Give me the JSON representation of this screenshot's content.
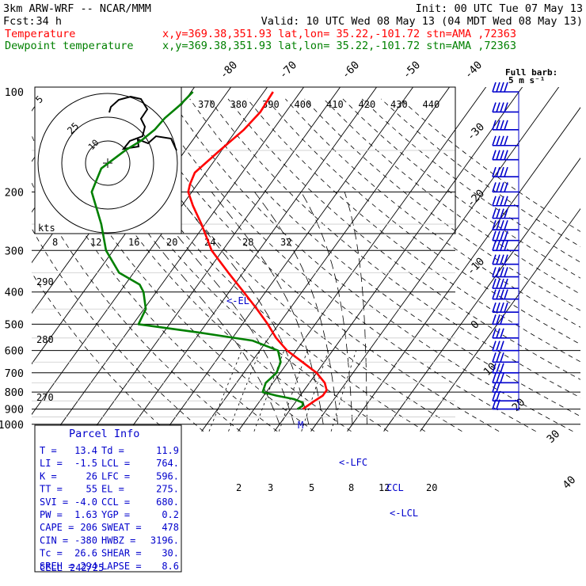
{
  "header": {
    "model": "3km ARW-WRF -- NCAR/MMM",
    "init": "Init: 00 UTC Tue 07 May 13",
    "fcst_label": "Fcst:",
    "fcst_value": "34 h",
    "valid": "Valid: 10 UTC Wed 08 May 13 (04 MDT Wed 08 May 13)",
    "temperature_line": "Temperature",
    "dewpoint_line": "Dewpoint temperature",
    "point_info": "x,y=369.38,351.93   lat,lon= 35.22,-101.72  stn=AMA ,72363"
  },
  "colors": {
    "temperature": "#ff0000",
    "dewpoint": "#008000",
    "parcel": "#0000cc",
    "grid": "#000000"
  },
  "hodograph": {
    "units_label": "kts",
    "ring_labels": [
      "5",
      "25",
      "10"
    ]
  },
  "wind_barbs": {
    "label_line1": "Full barb:",
    "label_line2": "5 m s⁻¹"
  },
  "parcel_markers": {
    "el": "<-EL",
    "lfc": "<-LFC",
    "lcl": "<-LCL",
    "ccl": "CCL",
    "m": "M"
  },
  "chart_data": {
    "type": "line",
    "title": "",
    "xlabel": "",
    "ylabel": "",
    "y_scale": "log",
    "ylim": [
      1000,
      100
    ],
    "pressure_ticks": [
      100,
      200,
      300,
      400,
      500,
      600,
      700,
      800,
      900,
      1000
    ],
    "isotherm_labels": [
      -80,
      -70,
      -60,
      -50,
      -40,
      -30,
      -20,
      -10,
      0,
      10,
      20,
      30,
      40
    ],
    "theta_labels_upper": [
      370,
      380,
      390,
      400,
      410,
      420,
      430,
      440
    ],
    "theta_labels_lower": [
      290,
      280,
      270
    ],
    "mixing_ratio_labels_upper": [
      8,
      12,
      16,
      20,
      24,
      28,
      32
    ],
    "mixing_ratio_labels_lower": [
      2,
      3,
      5,
      8,
      12,
      20
    ],
    "series": [
      {
        "name": "Temperature",
        "points": [
          [
            100,
            -57.5
          ],
          [
            115,
            -57
          ],
          [
            130,
            -58
          ],
          [
            150,
            -60.5
          ],
          [
            175,
            -63
          ],
          [
            190,
            -62
          ],
          [
            200,
            -61
          ],
          [
            220,
            -57
          ],
          [
            250,
            -51
          ],
          [
            300,
            -43
          ],
          [
            350,
            -34
          ],
          [
            400,
            -26
          ],
          [
            450,
            -19
          ],
          [
            500,
            -13
          ],
          [
            550,
            -8
          ],
          [
            600,
            -2.5
          ],
          [
            650,
            4
          ],
          [
            700,
            10
          ],
          [
            750,
            14.2
          ],
          [
            790,
            16.2
          ],
          [
            820,
            16.2
          ],
          [
            850,
            15
          ],
          [
            880,
            14
          ],
          [
            900,
            13.4
          ]
        ]
      },
      {
        "name": "Dewpoint temperature",
        "points": [
          [
            100,
            -79.5
          ],
          [
            110,
            -80.5
          ],
          [
            120,
            -82
          ],
          [
            130,
            -82.5
          ],
          [
            140,
            -84
          ],
          [
            150,
            -86.5
          ],
          [
            170,
            -89.5
          ],
          [
            200,
            -87.5
          ],
          [
            250,
            -78.5
          ],
          [
            300,
            -72
          ],
          [
            350,
            -64
          ],
          [
            380,
            -56
          ],
          [
            400,
            -53.5
          ],
          [
            450,
            -49.5
          ],
          [
            500,
            -48.5
          ],
          [
            530,
            -30
          ],
          [
            560,
            -14
          ],
          [
            600,
            -5
          ],
          [
            650,
            -2
          ],
          [
            700,
            -1
          ],
          [
            750,
            -2
          ],
          [
            800,
            -1
          ],
          [
            820,
            3.5
          ],
          [
            840,
            9
          ],
          [
            860,
            12
          ],
          [
            880,
            12.7
          ],
          [
            900,
            11.9
          ]
        ]
      }
    ],
    "wind_barb_pressures": [
      100,
      115,
      130,
      145,
      160,
      180,
      200,
      220,
      240,
      260,
      280,
      300,
      330,
      360,
      390,
      420,
      460,
      500,
      550,
      600,
      650,
      700,
      750,
      800,
      850,
      900
    ],
    "indices": [
      {
        "label": "T",
        "value": "13.4",
        "label2": "Td",
        "value2": "11.9"
      },
      {
        "label": "LI",
        "value": "-1.5",
        "label2": "LCL",
        "value2": "764."
      },
      {
        "label": "K",
        "value": "26",
        "label2": "LFC",
        "value2": "596."
      },
      {
        "label": "TT",
        "value": "55",
        "label2": "EL",
        "value2": "275."
      },
      {
        "label": "SVI",
        "value": "-4.0",
        "label2": "CCL",
        "value2": "680."
      },
      {
        "label": "PW",
        "value": "1.63",
        "label2": "YGP",
        "value2": "0.2"
      },
      {
        "label": "CAPE",
        "value": "206",
        "label2": "SWEAT",
        "value2": "478"
      },
      {
        "label": "CIN",
        "value": "-380",
        "label2": "HWBZ",
        "value2": "3196."
      },
      {
        "label": "Tc",
        "value": "26.6",
        "label2": "SHEAR",
        "value2": "30."
      },
      {
        "label": "SREH",
        "value": "294",
        "label2": "LAPSE",
        "value2": "8.6"
      }
    ],
    "parcel_info_title": "Parcel Info",
    "cell": {
      "label": "CELL",
      "value": "242/25"
    }
  }
}
